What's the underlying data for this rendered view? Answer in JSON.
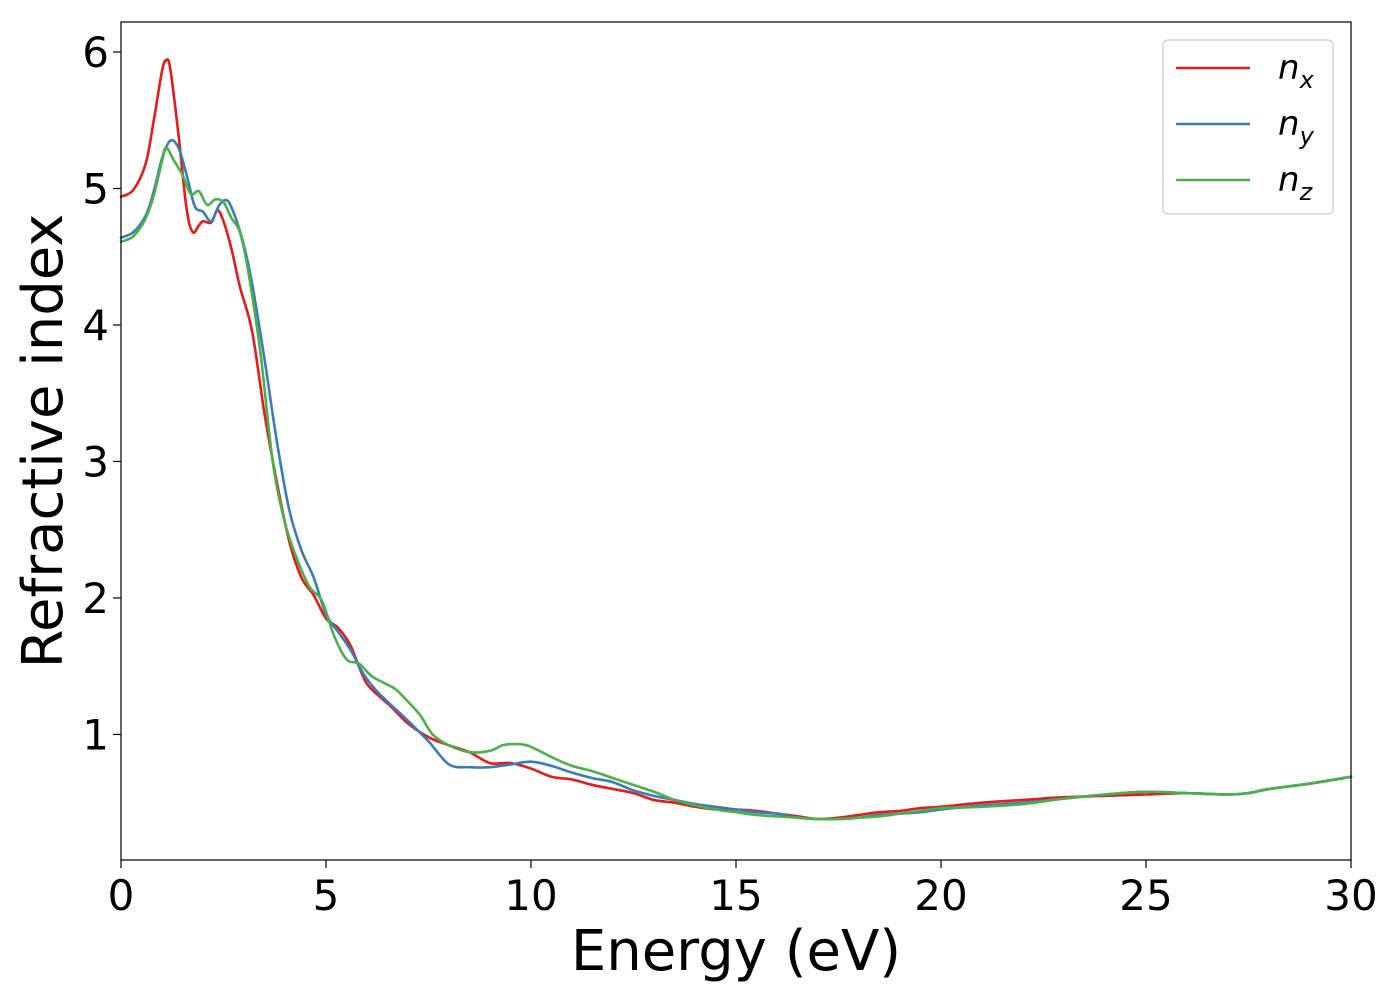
{
  "chart_data": {
    "type": "line",
    "xlabel": "Energy (eV)",
    "ylabel": "Refractive index",
    "xlim": [
      0,
      30
    ],
    "ylim": [
      0.08,
      6.22
    ],
    "xticks": [
      0,
      5,
      10,
      15,
      20,
      25,
      30
    ],
    "yticks": [
      1,
      2,
      3,
      4,
      5,
      6
    ],
    "grid": false,
    "legend_position": "top-right",
    "series": [
      {
        "name": "n_x",
        "legend_main": "n",
        "legend_sub": "x",
        "color": "#e41a1c",
        "x": [
          0,
          0.3,
          0.6,
          0.8,
          1.0,
          1.1,
          1.2,
          1.4,
          1.6,
          1.75,
          1.9,
          2.0,
          2.2,
          2.35,
          2.5,
          2.7,
          2.9,
          3.2,
          3.5,
          3.8,
          4.1,
          4.4,
          4.7,
          5.0,
          5.3,
          5.6,
          5.8,
          6.0,
          6.3,
          6.6,
          7.0,
          7.5,
          8.0,
          8.5,
          9.0,
          9.5,
          10.0,
          10.5,
          11.0,
          11.5,
          12.0,
          12.5,
          13.0,
          13.5,
          14.0,
          14.5,
          15.0,
          15.5,
          16.0,
          16.5,
          17.0,
          17.5,
          18.0,
          18.5,
          19.0,
          19.5,
          20.0,
          21.0,
          22.0,
          23.0,
          24.0,
          25.0,
          26.0,
          27.0,
          27.5,
          28.0,
          29.0,
          30.0
        ],
        "values": [
          4.94,
          4.99,
          5.18,
          5.5,
          5.86,
          5.94,
          5.88,
          5.4,
          4.85,
          4.68,
          4.73,
          4.76,
          4.75,
          4.84,
          4.76,
          4.55,
          4.28,
          3.95,
          3.35,
          2.85,
          2.42,
          2.15,
          2.02,
          1.85,
          1.78,
          1.65,
          1.5,
          1.37,
          1.28,
          1.2,
          1.08,
          0.98,
          0.92,
          0.87,
          0.79,
          0.79,
          0.75,
          0.69,
          0.67,
          0.63,
          0.6,
          0.57,
          0.52,
          0.5,
          0.47,
          0.45,
          0.45,
          0.44,
          0.42,
          0.4,
          0.38,
          0.39,
          0.41,
          0.43,
          0.44,
          0.46,
          0.47,
          0.5,
          0.52,
          0.54,
          0.55,
          0.56,
          0.57,
          0.56,
          0.57,
          0.6,
          0.64,
          0.69
        ]
      },
      {
        "name": "n_y",
        "legend_main": "n",
        "legend_sub": "y",
        "color": "#377eb8",
        "x": [
          0,
          0.3,
          0.6,
          0.8,
          1.0,
          1.2,
          1.4,
          1.6,
          1.8,
          2.0,
          2.2,
          2.4,
          2.6,
          2.8,
          3.0,
          3.2,
          3.5,
          3.8,
          4.1,
          4.4,
          4.7,
          5.0,
          5.3,
          5.6,
          5.9,
          6.2,
          6.5,
          7.0,
          7.5,
          8.0,
          8.5,
          9.0,
          9.5,
          10.0,
          10.5,
          11.0,
          11.5,
          12.0,
          12.5,
          13.0,
          13.5,
          14.0,
          14.5,
          15.0,
          15.5,
          16.0,
          16.5,
          17.0,
          17.5,
          18.0,
          18.5,
          19.0,
          19.5,
          20.0,
          21.0,
          22.0,
          23.0,
          24.0,
          25.0,
          26.0,
          27.0,
          27.5,
          28.0,
          29.0,
          30.0
        ],
        "values": [
          4.64,
          4.68,
          4.8,
          4.98,
          5.22,
          5.35,
          5.3,
          5.1,
          4.87,
          4.83,
          4.76,
          4.88,
          4.91,
          4.78,
          4.58,
          4.3,
          3.75,
          3.15,
          2.65,
          2.35,
          2.15,
          1.88,
          1.75,
          1.62,
          1.45,
          1.33,
          1.24,
          1.1,
          0.95,
          0.78,
          0.76,
          0.76,
          0.78,
          0.8,
          0.77,
          0.72,
          0.68,
          0.65,
          0.59,
          0.55,
          0.52,
          0.49,
          0.47,
          0.45,
          0.43,
          0.42,
          0.39,
          0.38,
          0.38,
          0.39,
          0.41,
          0.42,
          0.43,
          0.45,
          0.48,
          0.5,
          0.53,
          0.56,
          0.58,
          0.57,
          0.56,
          0.57,
          0.6,
          0.64,
          0.69
        ]
      },
      {
        "name": "n_z",
        "legend_main": "n",
        "legend_sub": "z",
        "color": "#4daf4a",
        "x": [
          0,
          0.3,
          0.6,
          0.8,
          1.0,
          1.1,
          1.3,
          1.5,
          1.7,
          1.9,
          2.1,
          2.3,
          2.5,
          2.7,
          2.9,
          3.1,
          3.4,
          3.7,
          4.0,
          4.3,
          4.6,
          4.9,
          5.2,
          5.5,
          5.8,
          6.1,
          6.4,
          6.7,
          7.0,
          7.3,
          7.6,
          8.0,
          8.5,
          9.0,
          9.3,
          9.6,
          9.9,
          10.2,
          10.6,
          11.0,
          11.5,
          12.0,
          12.5,
          13.0,
          13.5,
          14.0,
          14.5,
          15.0,
          15.5,
          16.0,
          16.5,
          17.0,
          17.5,
          18.0,
          18.5,
          19.0,
          19.5,
          20.0,
          21.0,
          22.0,
          23.0,
          24.0,
          25.0,
          26.0,
          27.0,
          27.5,
          28.0,
          29.0,
          30.0
        ],
        "values": [
          4.61,
          4.65,
          4.78,
          4.95,
          5.2,
          5.3,
          5.2,
          5.1,
          4.96,
          4.98,
          4.88,
          4.92,
          4.9,
          4.78,
          4.68,
          4.4,
          3.8,
          3.0,
          2.55,
          2.28,
          2.08,
          1.98,
          1.72,
          1.55,
          1.52,
          1.43,
          1.38,
          1.33,
          1.24,
          1.14,
          1.0,
          0.92,
          0.87,
          0.88,
          0.92,
          0.93,
          0.92,
          0.88,
          0.82,
          0.77,
          0.73,
          0.68,
          0.63,
          0.58,
          0.52,
          0.48,
          0.45,
          0.43,
          0.41,
          0.4,
          0.39,
          0.38,
          0.38,
          0.39,
          0.4,
          0.42,
          0.44,
          0.46,
          0.47,
          0.49,
          0.53,
          0.56,
          0.58,
          0.57,
          0.56,
          0.57,
          0.6,
          0.64,
          0.69
        ]
      }
    ]
  }
}
